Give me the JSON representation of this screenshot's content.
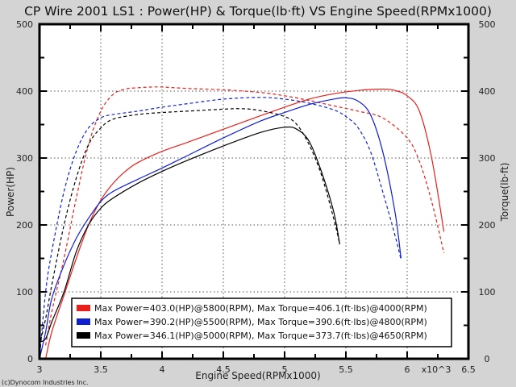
{
  "chart_data": {
    "type": "line",
    "title": "CP Wire 2001 LS1 : Power(HP) & Torque(lb·ft) VS Engine Speed(RPMx1000)",
    "xlabel": "Engine Speed(RPMx1000)",
    "ylabel_left": "Power(HP)",
    "ylabel_right": "Torque(lb·ft)",
    "x_multiplier_label": "x10^3",
    "xlim": [
      3,
      6.5
    ],
    "ylim": [
      0,
      500
    ],
    "x_ticks": [
      "3",
      "3.5",
      "4",
      "4.5",
      "5",
      "5.5",
      "6",
      "6.5"
    ],
    "y_ticks": [
      "0",
      "100",
      "200",
      "300",
      "400",
      "500"
    ],
    "grid": true,
    "legend_position": "lower-center",
    "footer": "(c)Dynocom Industries Inc.",
    "series": [
      {
        "name": "Max Power=403.0(HP)@5800(RPM), Max Torque=406.1(ft·lbs)@4000(RPM)",
        "color": "#e8201c",
        "power": {
          "x": [
            3.05,
            3.1,
            3.2,
            3.3,
            3.4,
            3.5,
            3.6,
            3.7,
            3.8,
            4.0,
            4.2,
            4.5,
            4.8,
            5.0,
            5.2,
            5.4,
            5.6,
            5.8,
            5.9,
            6.0,
            6.1,
            6.2,
            6.3
          ],
          "y": [
            0,
            40,
            95,
            150,
            200,
            237,
            262,
            280,
            293,
            310,
            323,
            343,
            363,
            376,
            388,
            396,
            401,
            403,
            401,
            393,
            370,
            300,
            190
          ]
        },
        "torque": {
          "x": [
            3.05,
            3.1,
            3.2,
            3.3,
            3.4,
            3.5,
            3.6,
            3.7,
            3.8,
            3.9,
            4.0,
            4.2,
            4.5,
            4.8,
            5.0,
            5.2,
            5.4,
            5.6,
            5.8,
            6.0,
            6.1,
            6.2,
            6.3
          ],
          "y": [
            20,
            70,
            150,
            240,
            320,
            370,
            395,
            403,
            405,
            406,
            406.1,
            404,
            402,
            398,
            393,
            386,
            378,
            370,
            360,
            330,
            295,
            235,
            158
          ]
        }
      },
      {
        "name": "Max Power=390.2(HP)@5500(RPM), Max Torque=390.6(ft·lbs)@4800(RPM)",
        "color": "#1020d0",
        "power": {
          "x": [
            3.0,
            3.05,
            3.1,
            3.2,
            3.3,
            3.4,
            3.5,
            3.6,
            3.8,
            4.0,
            4.2,
            4.5,
            4.8,
            5.0,
            5.2,
            5.4,
            5.5,
            5.6,
            5.7,
            5.8,
            5.9,
            5.95
          ],
          "y": [
            0,
            40,
            90,
            140,
            180,
            210,
            235,
            250,
            268,
            285,
            303,
            330,
            355,
            368,
            380,
            388,
            390,
            385,
            365,
            310,
            220,
            150
          ]
        },
        "torque": {
          "x": [
            3.0,
            3.05,
            3.1,
            3.2,
            3.3,
            3.4,
            3.5,
            3.6,
            3.8,
            4.0,
            4.2,
            4.5,
            4.8,
            5.0,
            5.2,
            5.4,
            5.5,
            5.6,
            5.7,
            5.8,
            5.9,
            5.95
          ],
          "y": [
            0,
            100,
            160,
            250,
            310,
            345,
            360,
            365,
            370,
            376,
            381,
            388,
            390.6,
            388,
            382,
            372,
            362,
            345,
            310,
            250,
            185,
            148
          ]
        }
      },
      {
        "name": "Max Power=346.1(HP)@5000(RPM), Max Torque=373.7(ft·lbs)@4650(RPM)",
        "color": "#000000",
        "power": {
          "x": [
            3.0,
            3.05,
            3.1,
            3.2,
            3.3,
            3.4,
            3.5,
            3.6,
            3.8,
            4.0,
            4.2,
            4.5,
            4.8,
            5.0,
            5.1,
            5.2,
            5.3,
            5.4,
            5.45
          ],
          "y": [
            25,
            30,
            55,
            100,
            160,
            200,
            225,
            240,
            262,
            280,
            296,
            318,
            338,
            346,
            343,
            325,
            280,
            220,
            171
          ]
        },
        "torque": {
          "x": [
            3.0,
            3.05,
            3.1,
            3.2,
            3.3,
            3.4,
            3.5,
            3.6,
            3.8,
            4.0,
            4.2,
            4.5,
            4.65,
            4.8,
            5.0,
            5.1,
            5.2,
            5.3,
            5.4,
            5.45
          ],
          "y": [
            20,
            60,
            110,
            200,
            270,
            320,
            345,
            358,
            365,
            368,
            370,
            373,
            373.7,
            371,
            362,
            350,
            320,
            275,
            210,
            171
          ]
        }
      }
    ]
  }
}
